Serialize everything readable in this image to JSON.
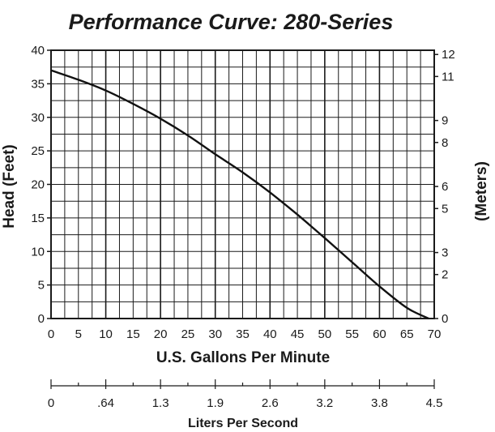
{
  "chart_data": {
    "type": "line",
    "title": "Performance Curve: 280-Series",
    "xlabel": "U.S. Gallons Per Minute",
    "ylabel": "Head (Feet)",
    "y2label": "(Meters)",
    "x2label": "Liters Per Second",
    "xlim": [
      0,
      70
    ],
    "ylim": [
      0,
      40
    ],
    "x_ticks": [
      "0",
      "5",
      "10",
      "15",
      "20",
      "25",
      "30",
      "35",
      "40",
      "45",
      "50",
      "55",
      "60",
      "65",
      "70"
    ],
    "y_ticks": [
      "0",
      "5",
      "10",
      "15",
      "20",
      "25",
      "30",
      "35",
      "40"
    ],
    "y2_ticks": [
      {
        "label": "0",
        "value": 0
      },
      {
        "label": "2",
        "value": 6.56
      },
      {
        "label": "3",
        "value": 9.84
      },
      {
        "label": "5",
        "value": 16.4
      },
      {
        "label": "6",
        "value": 19.69
      },
      {
        "label": "8",
        "value": 26.25
      },
      {
        "label": "9",
        "value": 29.53
      },
      {
        "label": "11",
        "value": 36.09
      },
      {
        "label": "12",
        "value": 39.37
      }
    ],
    "x2_ticks": [
      {
        "label": "0",
        "gpm": 0
      },
      {
        "label": ".64",
        "gpm": 10
      },
      {
        "label": "1.3",
        "gpm": 20
      },
      {
        "label": "1.9",
        "gpm": 30
      },
      {
        "label": "2.6",
        "gpm": 40
      },
      {
        "label": "3.2",
        "gpm": 50
      },
      {
        "label": "3.8",
        "gpm": 60
      },
      {
        "label": "4.5",
        "gpm": 70
      }
    ],
    "grid": true,
    "series": [
      {
        "x": [
          0,
          5,
          10,
          15,
          20,
          25,
          30,
          35,
          40,
          45,
          50,
          55,
          60,
          65,
          69
        ],
        "y": [
          37,
          35.6,
          34,
          32,
          29.8,
          27.3,
          24.5,
          21.8,
          18.8,
          15.5,
          12.0,
          8.4,
          4.8,
          1.6,
          0
        ]
      }
    ]
  }
}
